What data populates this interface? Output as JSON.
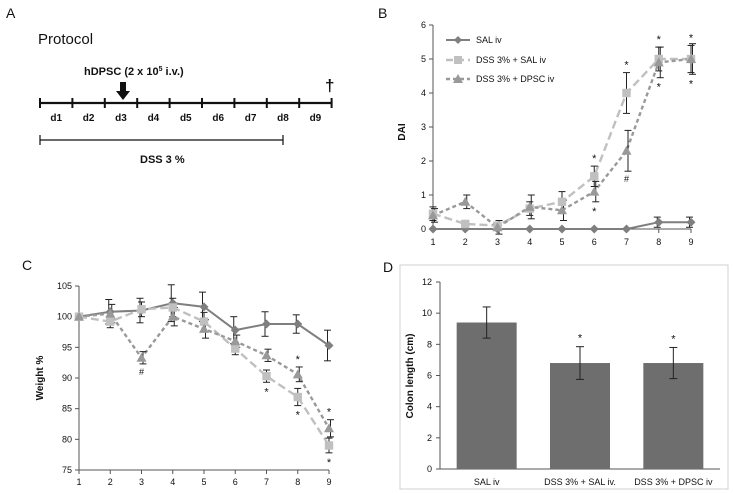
{
  "panels": {
    "A": {
      "letter": "A",
      "title": "Protocol",
      "injection_label_pre": "hDPSC (2 x 10",
      "injection_label_exp": "5",
      "injection_label_post": " i.v.)",
      "sacrifice_symbol": "†",
      "days": [
        "d1",
        "d2",
        "d3",
        "d4",
        "d5",
        "d6",
        "d7",
        "d8",
        "d9"
      ],
      "injection_day": "d3",
      "dss_label": "DSS 3 %"
    },
    "B": {
      "letter": "B"
    },
    "C": {
      "letter": "C"
    },
    "D": {
      "letter": "D"
    }
  },
  "colors": {
    "sal": "#7f7f7f",
    "dss_sal": "#c0c0c0",
    "dss_dpsc": "#999999",
    "bar": "#6e6e6e"
  },
  "chart_data": [
    {
      "id": "B",
      "type": "line",
      "title": "",
      "xlabel": "",
      "ylabel": "DAI",
      "x": [
        1,
        2,
        3,
        4,
        5,
        6,
        7,
        8,
        9
      ],
      "xlim": [
        1,
        9
      ],
      "ylim": [
        0,
        6
      ],
      "yticks": [
        0,
        1,
        2,
        3,
        4,
        5,
        6
      ],
      "legend_position": "top-left",
      "series": [
        {
          "name": "SAL iv",
          "marker": "diamond",
          "values": [
            0,
            0,
            0,
            0,
            0,
            0,
            0,
            0.2,
            0.2
          ],
          "errors": [
            0,
            0,
            0,
            0,
            0,
            0,
            0,
            0.15,
            0.15
          ]
        },
        {
          "name": "DSS 3% + SAL iv",
          "marker": "square",
          "values": [
            0.45,
            0.15,
            0.1,
            0.6,
            0.8,
            1.55,
            4.0,
            5.0,
            5.0
          ],
          "errors": [
            0.2,
            0.1,
            0.1,
            0.2,
            0.3,
            0.3,
            0.6,
            0.35,
            0.4
          ]
        },
        {
          "name": "DSS 3% + DPSC iv",
          "marker": "triangle",
          "values": [
            0.4,
            0.8,
            0.05,
            0.65,
            0.55,
            1.1,
            2.3,
            4.9,
            5.0
          ],
          "errors": [
            0.2,
            0.2,
            0.2,
            0.35,
            0.3,
            0.3,
            0.6,
            0.45,
            0.45
          ]
        }
      ],
      "annotations": [
        {
          "x": 6,
          "series": 1,
          "text": "*",
          "pos": "above"
        },
        {
          "x": 6,
          "series": 2,
          "text": "*",
          "pos": "below"
        },
        {
          "x": 7,
          "series": 1,
          "text": "*",
          "pos": "above"
        },
        {
          "x": 7,
          "series": 2,
          "text": "#",
          "pos": "below"
        },
        {
          "x": 8,
          "series": 1,
          "text": "*",
          "pos": "above"
        },
        {
          "x": 8,
          "series": 2,
          "text": "*",
          "pos": "below"
        },
        {
          "x": 9,
          "series": 1,
          "text": "*",
          "pos": "above"
        },
        {
          "x": 9,
          "series": 2,
          "text": "*",
          "pos": "below"
        }
      ]
    },
    {
      "id": "C",
      "type": "line",
      "title": "",
      "xlabel": "",
      "ylabel": "Weight %",
      "x": [
        1,
        2,
        3,
        4,
        5,
        6,
        7,
        8,
        9
      ],
      "xlim": [
        1,
        9
      ],
      "ylim": [
        75,
        105
      ],
      "yticks": [
        75,
        80,
        85,
        90,
        95,
        100,
        105
      ],
      "series": [
        {
          "name": "SAL iv",
          "marker": "diamond",
          "values": [
            100,
            100.8,
            101,
            102.2,
            101.6,
            97.8,
            98.8,
            98.8,
            95.3
          ],
          "errors": [
            0,
            2,
            2,
            3,
            2.4,
            2.2,
            2,
            1.5,
            2.5
          ]
        },
        {
          "name": "DSS 3% + SAL iv",
          "marker": "square",
          "values": [
            100,
            99.2,
            101.2,
            101.5,
            99.2,
            94.8,
            90.3,
            86.9,
            79
          ],
          "errors": [
            0,
            1,
            1.2,
            1.5,
            1.5,
            1,
            1,
            1.4,
            1.2
          ]
        },
        {
          "name": "DSS 3% + DPSC iv",
          "marker": "triangle",
          "values": [
            100,
            100.5,
            93.3,
            100,
            98,
            96,
            93.7,
            90.6,
            81.8
          ],
          "errors": [
            0,
            1.5,
            1,
            1.5,
            1.5,
            1,
            1,
            1.2,
            1.4
          ]
        }
      ],
      "annotations": [
        {
          "x": 3,
          "series": 2,
          "text": "#",
          "pos": "below"
        },
        {
          "x": 7,
          "series": 1,
          "text": "*",
          "pos": "below"
        },
        {
          "x": 8,
          "series": 2,
          "text": "*",
          "pos": "above"
        },
        {
          "x": 8,
          "series": 1,
          "text": "*",
          "pos": "below"
        },
        {
          "x": 9,
          "series": 2,
          "text": "*",
          "pos": "above"
        },
        {
          "x": 9,
          "series": 1,
          "text": "*",
          "pos": "below"
        }
      ]
    },
    {
      "id": "D",
      "type": "bar",
      "title": "",
      "xlabel": "",
      "ylabel": "Colon length (cm)",
      "categories": [
        "SAL iv",
        "DSS 3% +  SAL iv.",
        "DSS 3% +  DPSC iv"
      ],
      "values": [
        9.4,
        6.8,
        6.8
      ],
      "errors": [
        1.0,
        1.05,
        1.0
      ],
      "significance": [
        "",
        "*",
        "*"
      ],
      "ylim": [
        0,
        12
      ],
      "yticks": [
        0,
        2,
        4,
        6,
        8,
        10,
        12
      ]
    }
  ]
}
